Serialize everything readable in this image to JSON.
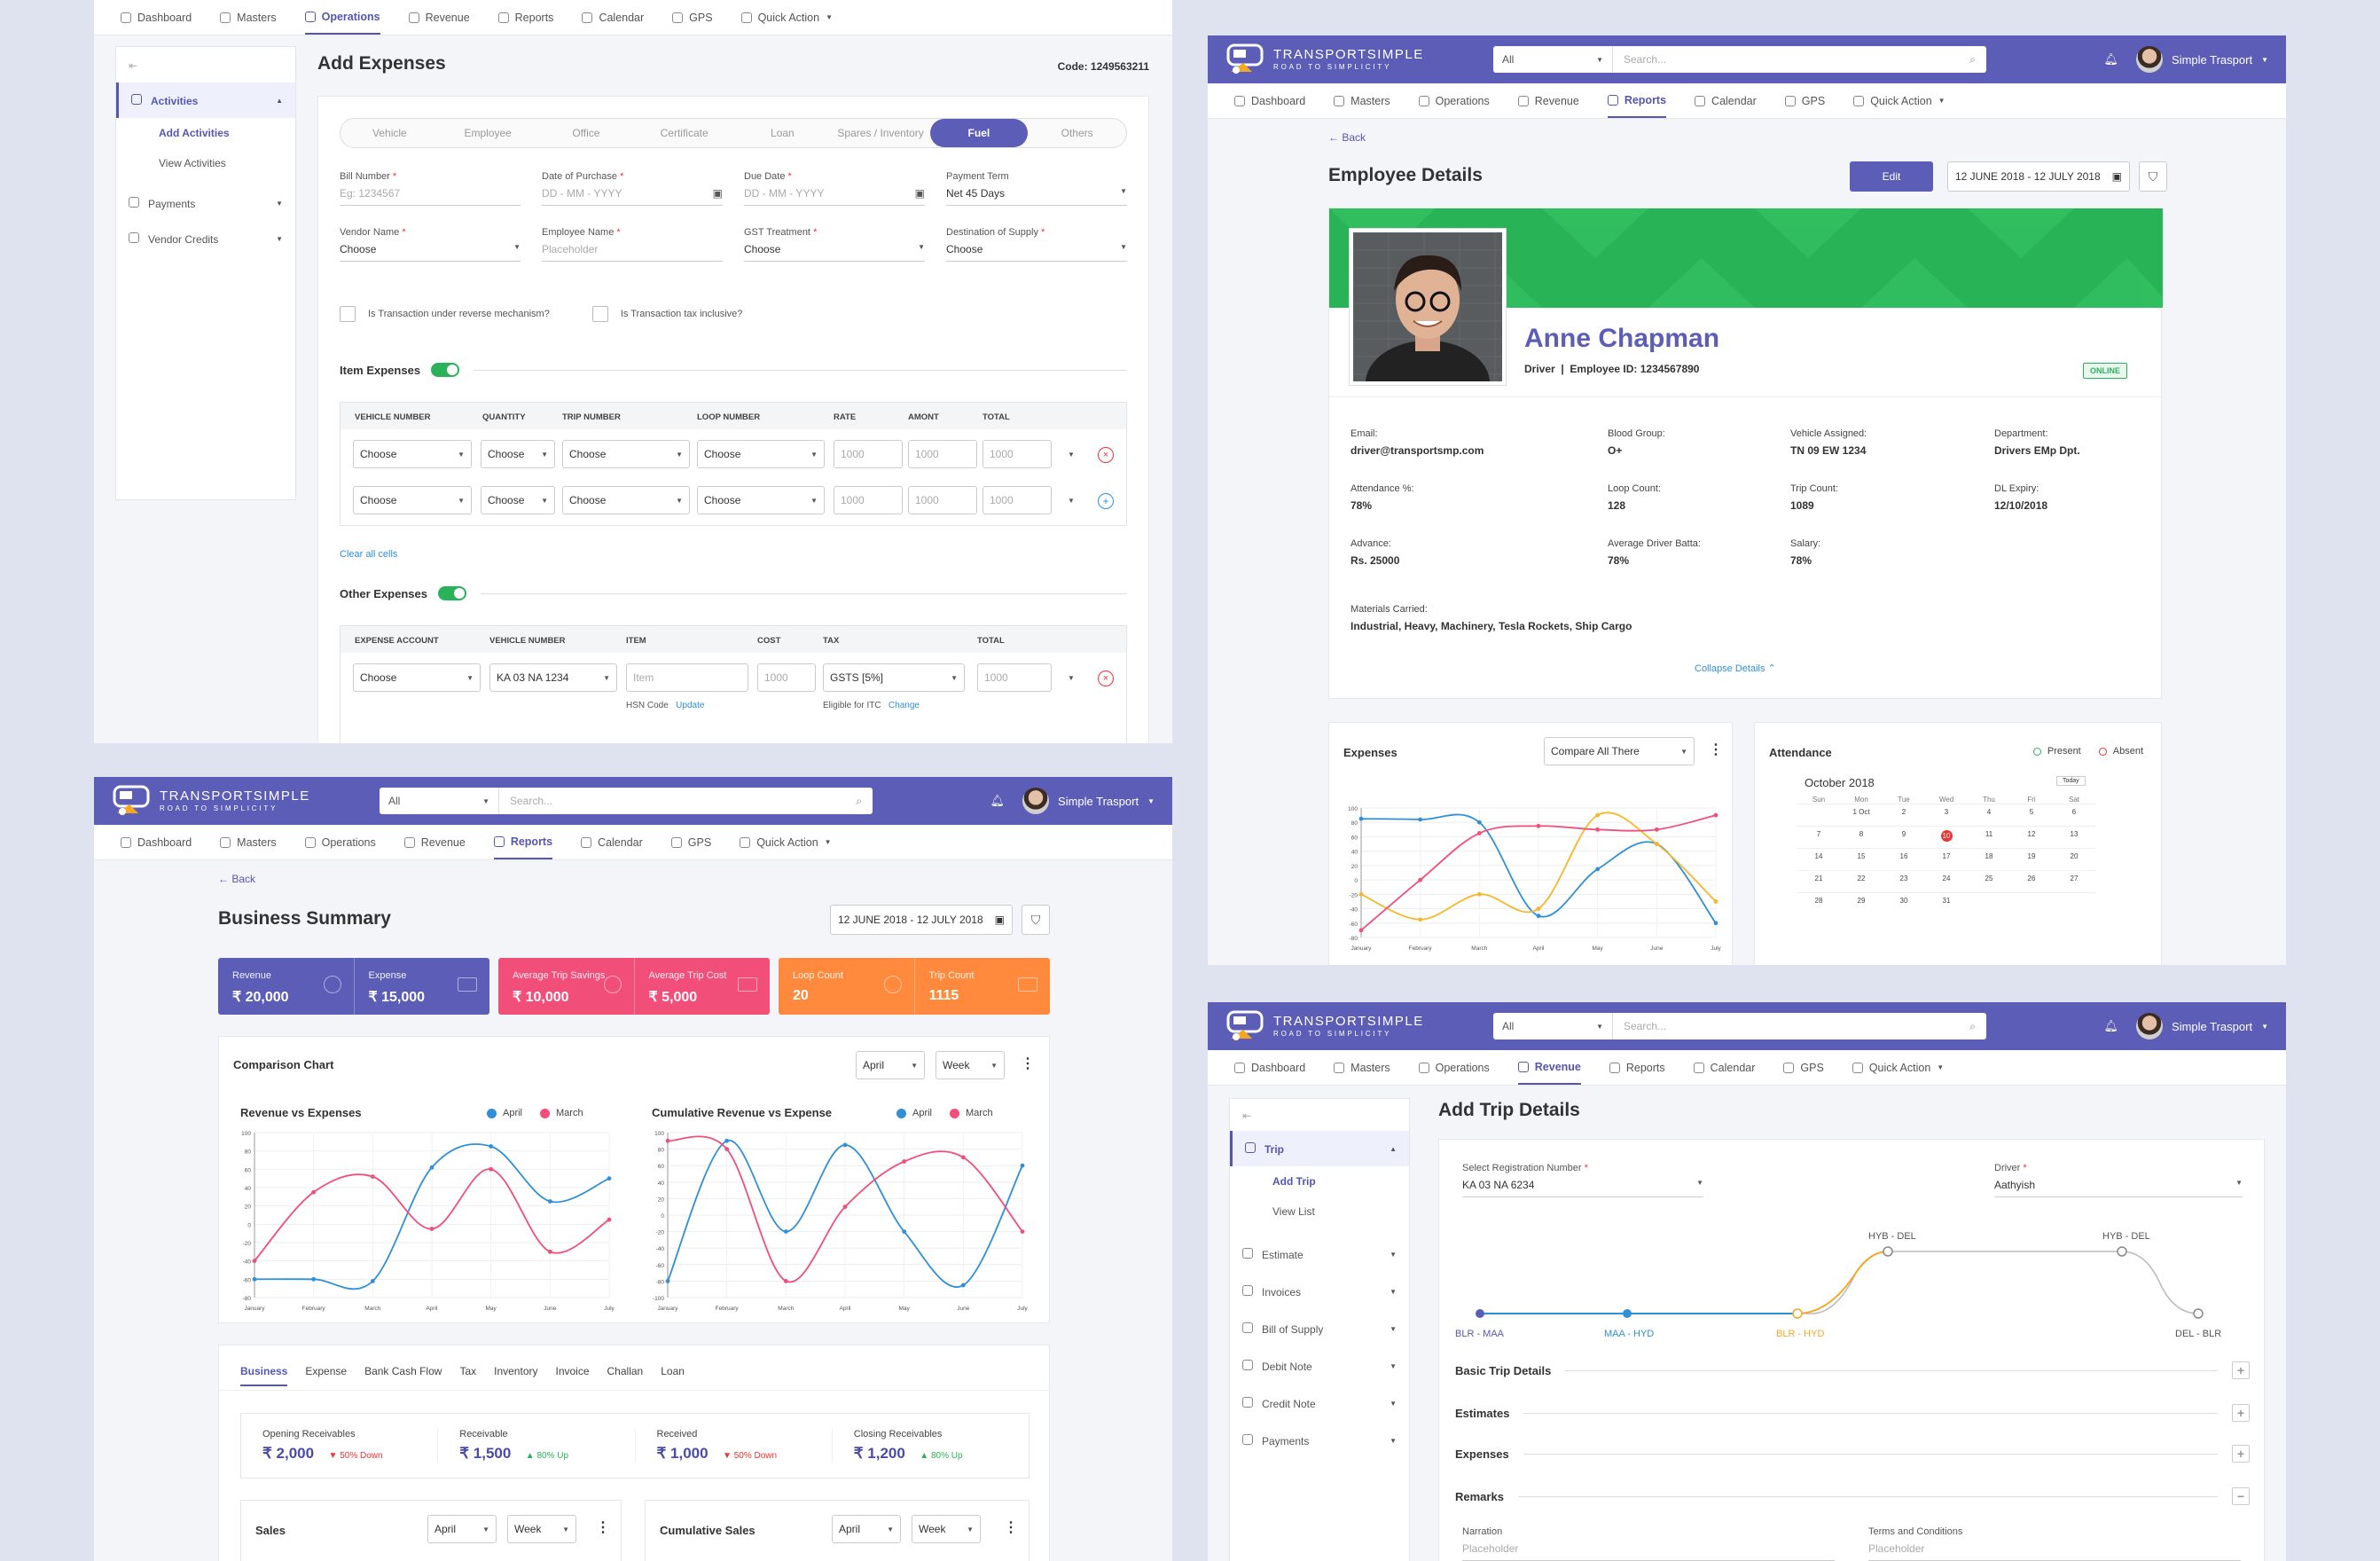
{
  "app": {
    "brand": "TRANSPORT",
    "brand2": "SIMPLE",
    "tagline": "ROAD TO SIMPLICITY",
    "user": "Simple Trasport",
    "search_scope": "All",
    "search_placeholder": "Search..."
  },
  "nav": [
    "Dashboard",
    "Masters",
    "Operations",
    "Revenue",
    "Reports",
    "Calendar",
    "GPS",
    "Quick Action"
  ],
  "colors": {
    "primary": "#5c5db6",
    "green": "#2ab25a",
    "blue": "#2f8fd8",
    "pink": "#f24e7a",
    "orange": "#ff8a3d"
  },
  "expenses": {
    "title": "Add Expenses",
    "code": "Code: 1249563211",
    "side": [
      {
        "label": "Activities"
      },
      {
        "label": "Add Activities"
      },
      {
        "label": "View Activities"
      },
      {
        "label": "Payments"
      },
      {
        "label": "Vendor Credits"
      }
    ],
    "tabs": [
      "Vehicle",
      "Employee",
      "Office",
      "Certificate",
      "Loan",
      "Spares / Inventory",
      "Fuel",
      "Others"
    ],
    "fields": [
      {
        "label": "Bill Number",
        "value": "Eg: 1234567"
      },
      {
        "label": "Date of Purchase",
        "value": "DD - MM - YYYY"
      },
      {
        "label": "Due Date",
        "value": "DD - MM - YYYY"
      },
      {
        "label": "Payment Term",
        "value": "Net 45 Days"
      },
      {
        "label": "Vendor Name",
        "value": "Choose"
      },
      {
        "label": "Employee Name",
        "value": "Placeholder"
      },
      {
        "label": "GST Treatment",
        "value": "Choose"
      },
      {
        "label": "Destination of Supply",
        "value": "Choose"
      }
    ],
    "check1": "Is Transaction under reverse mechanism?",
    "check2": "Is Transaction tax inclusive?",
    "item_title": "Item Expenses",
    "item_cols": [
      "VEHICLE NUMBER",
      "QUANTITY",
      "TRIP NUMBER",
      "LOOP NUMBER",
      "RATE",
      "AMONT",
      "TOTAL"
    ],
    "choose": "Choose",
    "num": "1000",
    "clear": "Clear all cells",
    "other_title": "Other Expenses",
    "other_cols": [
      "EXPENSE ACCOUNT",
      "VEHICLE NUMBER",
      "ITEM",
      "COST",
      "TAX",
      "TOTAL"
    ],
    "other_row": {
      "vehicle": "KA 03 NA 1234",
      "item": "Item",
      "tax": "GSTS [5%]",
      "hsn": "HSN Code",
      "update": "Update",
      "itc": "Eligible for ITC",
      "change": "Change"
    }
  },
  "employee": {
    "back": "Back",
    "title": "Employee Details",
    "edit": "Edit",
    "range": "12 JUNE 2018 - 12 JULY 2018",
    "name": "Anne Chapman",
    "role": "Driver",
    "emp_id": "Employee ID: 1234567890",
    "status": "ONLINE",
    "details": [
      {
        "k": "Email:",
        "v": "driver@transportsmp.com"
      },
      {
        "k": "Blood Group:",
        "v": "O+"
      },
      {
        "k": "Vehicle Assigned:",
        "v": "TN 09 EW 1234"
      },
      {
        "k": "Department:",
        "v": "Drivers EMp Dpt."
      },
      {
        "k": "Attendance %:",
        "v": "78%"
      },
      {
        "k": "Loop Count:",
        "v": "128"
      },
      {
        "k": "Trip Count:",
        "v": "1089"
      },
      {
        "k": "DL Expiry:",
        "v": "12/10/2018"
      },
      {
        "k": "Advance:",
        "v": "Rs. 25000"
      },
      {
        "k": "Average Driver Batta:",
        "v": "78%"
      },
      {
        "k": "Salary:",
        "v": "78%"
      }
    ],
    "materials_k": "Materials Carried:",
    "materials_v": "Industrial, Heavy, Machinery, Tesla Rockets, Ship Cargo",
    "collapse": "Collapse Details",
    "expenses_title": "Expenses",
    "compare": "Compare All There",
    "attendance_title": "Attendance",
    "present": "Present",
    "absent": "Absent",
    "cal_month": "October 2018",
    "today": "Today",
    "cal_days": [
      "Sun",
      "Mon",
      "Tue",
      "Wed",
      "Thu",
      "Fri",
      "Sat"
    ]
  },
  "summary": {
    "back": "Back",
    "title": "Business Summary",
    "range": "12 JUNE 2018 - 12 JULY 2018",
    "stats": [
      {
        "k": "Revenue",
        "v": "₹ 20,000"
      },
      {
        "k": "Expense",
        "v": "₹ 15,000"
      },
      {
        "k": "Average Trip Savings",
        "v": "₹ 10,000"
      },
      {
        "k": "Average Trip Cost",
        "v": "₹ 5,000"
      },
      {
        "k": "Loop Count",
        "v": "20"
      },
      {
        "k": "Trip Count",
        "v": "1115"
      }
    ],
    "comparison": "Comparison Chart",
    "month": "April",
    "period": "Week",
    "chart1": "Revenue vs Expenses",
    "chart2": "Cumulative Revenue vs Expense",
    "tabs": [
      "Business",
      "Expense",
      "Bank Cash Flow",
      "Tax",
      "Inventory",
      "Invoice",
      "Challan",
      "Loan"
    ],
    "kpis": [
      {
        "k": "Opening Receivables",
        "v": "₹ 2,000",
        "d": "50% Down",
        "up": false
      },
      {
        "k": "Receivable",
        "v": "₹ 1,500",
        "d": "80% Up",
        "up": true
      },
      {
        "k": "Received",
        "v": "₹ 1,000",
        "d": "50% Down",
        "up": false
      },
      {
        "k": "Closing Receivables",
        "v": "₹ 1,200",
        "d": "80% Up",
        "up": true
      }
    ],
    "sales": "Sales",
    "cum_sales": "Cumulative Sales"
  },
  "trip": {
    "title": "Add Trip Details",
    "side": [
      "Trip",
      "Add Trip",
      "View List",
      "Estimate",
      "Invoices",
      "Bill of Supply",
      "Debit Note",
      "Credit Note",
      "Payments"
    ],
    "reg_label": "Select Registration Number",
    "reg_value": "KA 03 NA 6234",
    "driver_label": "Driver",
    "driver_value": "Aathyish",
    "route": [
      "BLR - MAA",
      "MAA - HYD",
      "BLR - HYD",
      "HYB - DEL",
      "HYB - DEL",
      "DEL - BLR"
    ],
    "sections": [
      "Basic Trip Details",
      "Estimates",
      "Expenses",
      "Remarks"
    ],
    "narration": "Narration",
    "terms": "Terms and Conditions",
    "placeholder": "Placeholder"
  },
  "chart_data": [
    {
      "type": "line",
      "title": "Revenue vs Expenses",
      "x": [
        "January",
        "February",
        "March",
        "April",
        "May",
        "June",
        "July"
      ],
      "ylim": [
        -80,
        100
      ],
      "legend": "top-right",
      "series": [
        {
          "name": "April",
          "values": [
            -60,
            -60,
            -62,
            62,
            85,
            25,
            50
          ]
        },
        {
          "name": "March",
          "values": [
            -40,
            35,
            52,
            -5,
            60,
            -30,
            5
          ]
        }
      ]
    },
    {
      "type": "line",
      "title": "Cumulative Revenue vs Expense",
      "x": [
        "January",
        "February",
        "March",
        "April",
        "May",
        "June",
        "July"
      ],
      "ylim": [
        -100,
        100
      ],
      "legend": "top-right",
      "series": [
        {
          "name": "April",
          "values": [
            -80,
            90,
            -20,
            85,
            -20,
            -85,
            60
          ]
        },
        {
          "name": "March",
          "values": [
            90,
            80,
            -80,
            10,
            65,
            70,
            -20
          ]
        }
      ]
    },
    {
      "type": "line",
      "title": "Expenses",
      "x": [
        "January",
        "February",
        "March",
        "April",
        "May",
        "June",
        "July"
      ],
      "ylim": [
        -80,
        100
      ],
      "series": [
        {
          "values": [
            85,
            84,
            80,
            -50,
            15,
            50,
            -60
          ]
        },
        {
          "values": [
            -20,
            -55,
            -20,
            -40,
            90,
            50,
            -30
          ]
        },
        {
          "values": [
            -70,
            0,
            65,
            75,
            70,
            70,
            90
          ]
        }
      ]
    }
  ]
}
